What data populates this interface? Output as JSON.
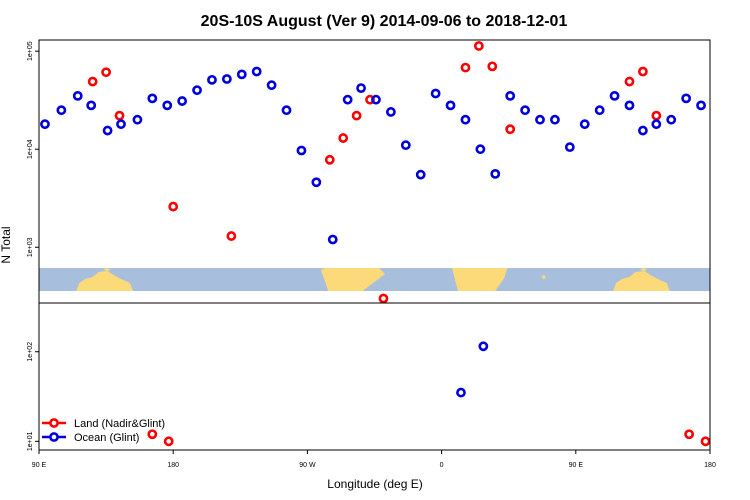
{
  "chart_data": {
    "type": "scatter",
    "title": "20S-10S August (Ver 9)   2014-09-06 to 2018-12-01",
    "xlabel": "Longitude (deg E)",
    "ylabel": "N Total",
    "log_y": true,
    "x_ticks": [
      {
        "x": 90,
        "label": "90 E"
      },
      {
        "x": 180,
        "label": "180"
      },
      {
        "x": 270,
        "label": "90 W"
      },
      {
        "x": 360,
        "label": "0"
      },
      {
        "x": 450,
        "label": "90 E"
      },
      {
        "x": 540,
        "label": "180"
      }
    ],
    "panels": [
      {
        "name": "top",
        "ylim": [
          270,
          130000
        ],
        "y_ticks": [
          {
            "y": 1000,
            "label": "1e+03"
          },
          {
            "y": 10000,
            "label": "1e+04"
          },
          {
            "y": 100000,
            "label": "1e+05"
          }
        ],
        "series": [
          {
            "name": "Land (Nadir&Glint)",
            "color": "#ff0000",
            "points": [
              {
                "x": 126,
                "y": 49000
              },
              {
                "x": 135,
                "y": 61000
              },
              {
                "x": 144,
                "y": 22000
              },
              {
                "x": 180,
                "y": 2600
              },
              {
                "x": 219,
                "y": 1300
              },
              {
                "x": 285,
                "y": 7800
              },
              {
                "x": 294,
                "y": 13000
              },
              {
                "x": 303,
                "y": 22000
              },
              {
                "x": 312,
                "y": 32000
              },
              {
                "x": 321,
                "y": 300
              },
              {
                "x": 376,
                "y": 68000
              },
              {
                "x": 385,
                "y": 113000
              },
              {
                "x": 394,
                "y": 70000
              },
              {
                "x": 406,
                "y": 16000
              },
              {
                "x": 486,
                "y": 49000
              },
              {
                "x": 495,
                "y": 62000
              },
              {
                "x": 504,
                "y": 22000
              }
            ]
          },
          {
            "name": "Ocean (Glint)",
            "color": "#0000dd",
            "points": [
              {
                "x": 94,
                "y": 18000
              },
              {
                "x": 105,
                "y": 25000
              },
              {
                "x": 116,
                "y": 35000
              },
              {
                "x": 125,
                "y": 28000
              },
              {
                "x": 136,
                "y": 15500
              },
              {
                "x": 145,
                "y": 18000
              },
              {
                "x": 156,
                "y": 20000
              },
              {
                "x": 166,
                "y": 33000
              },
              {
                "x": 176,
                "y": 28000
              },
              {
                "x": 186,
                "y": 31000
              },
              {
                "x": 196,
                "y": 40000
              },
              {
                "x": 206,
                "y": 51000
              },
              {
                "x": 216,
                "y": 52000
              },
              {
                "x": 226,
                "y": 58000
              },
              {
                "x": 236,
                "y": 62000
              },
              {
                "x": 246,
                "y": 45000
              },
              {
                "x": 256,
                "y": 25000
              },
              {
                "x": 266,
                "y": 9700
              },
              {
                "x": 276,
                "y": 4600
              },
              {
                "x": 287,
                "y": 1200
              },
              {
                "x": 297,
                "y": 32000
              },
              {
                "x": 306,
                "y": 42000
              },
              {
                "x": 316,
                "y": 32000
              },
              {
                "x": 326,
                "y": 24000
              },
              {
                "x": 336,
                "y": 11000
              },
              {
                "x": 346,
                "y": 5500
              },
              {
                "x": 356,
                "y": 37000
              },
              {
                "x": 366,
                "y": 28000
              },
              {
                "x": 376,
                "y": 20000
              },
              {
                "x": 386,
                "y": 10000
              },
              {
                "x": 396,
                "y": 5600
              },
              {
                "x": 406,
                "y": 35000
              },
              {
                "x": 416,
                "y": 25000
              },
              {
                "x": 426,
                "y": 20000
              },
              {
                "x": 436,
                "y": 20000
              },
              {
                "x": 446,
                "y": 10500
              },
              {
                "x": 456,
                "y": 18000
              },
              {
                "x": 466,
                "y": 25000
              },
              {
                "x": 476,
                "y": 35000
              },
              {
                "x": 486,
                "y": 28000
              },
              {
                "x": 495,
                "y": 15500
              },
              {
                "x": 504,
                "y": 18000
              },
              {
                "x": 514,
                "y": 20000
              },
              {
                "x": 524,
                "y": 33000
              },
              {
                "x": 534,
                "y": 28000
              }
            ]
          }
        ]
      },
      {
        "name": "bottom",
        "ylim": [
          8,
          350
        ],
        "y_ticks": [
          {
            "y": 10,
            "label": "1e+01"
          },
          {
            "y": 100,
            "label": "1e+02"
          }
        ],
        "series": [
          {
            "name": "Land (Nadir&Glint)",
            "color": "#ff0000",
            "points": [
              {
                "x": 166,
                "y": 12
              },
              {
                "x": 177,
                "y": 10
              },
              {
                "x": 526,
                "y": 12
              },
              {
                "x": 537,
                "y": 10
              }
            ]
          },
          {
            "name": "Ocean (Glint)",
            "color": "#0000dd",
            "points": [
              {
                "x": 373,
                "y": 35
              },
              {
                "x": 388,
                "y": 115
              }
            ]
          }
        ]
      }
    ],
    "legend": {
      "placement": "bottom-left",
      "entries": [
        {
          "name": "Land (Nadir&Glint)",
          "color": "#ff0000"
        },
        {
          "name": "Ocean (Glint)",
          "color": "#0000dd"
        }
      ]
    },
    "map_strip": {
      "ocean_color": "#a7bfdc",
      "land_color": "#fcda7a"
    }
  }
}
